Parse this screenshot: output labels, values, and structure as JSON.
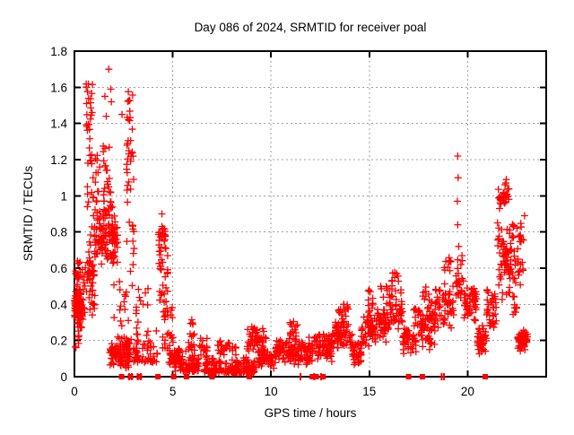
{
  "window": {
    "title": "Day 086 of 2024, SRMTID for receiver poal"
  },
  "chart_data": {
    "type": "scatter",
    "title": "Day 086 of 2024, SRMTID for receiver poal",
    "xlabel": "GPS time / hours",
    "ylabel": "SRMTID / TECUs",
    "xlim": [
      0,
      24
    ],
    "ylim": [
      0,
      1.8
    ],
    "xticks": [
      0,
      5,
      10,
      15,
      20
    ],
    "xtick_labels": [
      "0",
      "5",
      "10",
      "15",
      "20"
    ],
    "yticks": [
      0,
      0.2,
      0.4,
      0.6,
      0.8,
      1.0,
      1.2,
      1.4,
      1.6,
      1.8
    ],
    "ytick_labels": [
      "0",
      "0.2",
      "0.4",
      "0.6",
      "0.8",
      "1",
      "1.2",
      "1.4",
      "1.6",
      "1.8"
    ],
    "grid": true,
    "legend": "none",
    "marker": "plus",
    "marker_color": "#ff0000",
    "grid_color": "#a0a0a0",
    "axis_color": "#000000",
    "background": "#ffffff",
    "seed": 20240086,
    "points_singles": [
      [
        1.75,
        1.7
      ],
      [
        1.55,
        1.55
      ],
      [
        1.62,
        1.44
      ],
      [
        1.85,
        1.59
      ],
      [
        1.88,
        1.52
      ],
      [
        2.42,
        1.45
      ],
      [
        19.5,
        1.22
      ],
      [
        19.52,
        1.1
      ],
      [
        19.48,
        0.97
      ],
      [
        19.5,
        0.84
      ],
      [
        19.55,
        0.72
      ],
      [
        0.15,
        0.64
      ],
      [
        4.45,
        0.9
      ],
      [
        13.7,
        0.4
      ],
      [
        15.05,
        0.47
      ],
      [
        16.3,
        0.575
      ],
      [
        21.97,
        1.09
      ],
      [
        5.97,
        0.315
      ],
      [
        11.15,
        0.305
      ],
      [
        22.9,
        0.89
      ]
    ],
    "points_clusters": [
      [
        0.0,
        0.35,
        0.27,
        0.52,
        80,
        "d"
      ],
      [
        0.0,
        0.35,
        0.5,
        0.65,
        14,
        "u"
      ],
      [
        0.05,
        0.4,
        0.15,
        0.28,
        12,
        "u"
      ],
      [
        0.35,
        0.62,
        0.3,
        0.62,
        16,
        "u"
      ],
      [
        0.55,
        0.92,
        1.2,
        1.62,
        26,
        "u"
      ],
      [
        0.58,
        1.0,
        0.88,
        1.2,
        13,
        "u"
      ],
      [
        0.6,
        1.05,
        0.3,
        0.88,
        48,
        "d"
      ],
      [
        1.0,
        1.45,
        0.55,
        0.95,
        42,
        "d"
      ],
      [
        1.05,
        1.35,
        0.95,
        1.25,
        11,
        "u"
      ],
      [
        1.45,
        1.95,
        0.6,
        1.05,
        58,
        "d"
      ],
      [
        1.45,
        1.82,
        1.02,
        1.28,
        16,
        "u"
      ],
      [
        1.95,
        2.2,
        0.6,
        0.92,
        30,
        "d"
      ],
      [
        1.8,
        2.9,
        0.04,
        0.24,
        95,
        "d"
      ],
      [
        2.0,
        2.75,
        0.27,
        0.58,
        14,
        "u"
      ],
      [
        2.58,
        3.05,
        1.2,
        1.58,
        22,
        "u"
      ],
      [
        2.6,
        3.05,
        0.92,
        1.2,
        10,
        "u"
      ],
      [
        2.65,
        3.15,
        0.5,
        0.92,
        12,
        "u"
      ],
      [
        3.0,
        4.25,
        0.08,
        0.33,
        55,
        "b"
      ],
      [
        3.1,
        3.85,
        0.33,
        0.52,
        10,
        "u"
      ],
      [
        4.28,
        4.65,
        0.7,
        0.87,
        26,
        "d"
      ],
      [
        4.3,
        4.75,
        0.42,
        0.7,
        24,
        "u"
      ],
      [
        4.4,
        5.05,
        0.15,
        0.42,
        30,
        "u"
      ],
      [
        4.8,
        5.35,
        0.03,
        0.17,
        48,
        "d"
      ],
      [
        5.35,
        6.35,
        0.03,
        0.15,
        75,
        "b"
      ],
      [
        5.8,
        6.15,
        0.14,
        0.3,
        18,
        "u"
      ],
      [
        6.3,
        6.8,
        0.09,
        0.27,
        16,
        "u"
      ],
      [
        6.6,
        9.2,
        0.02,
        0.13,
        160,
        "b"
      ],
      [
        7.25,
        8.25,
        0.12,
        0.2,
        26,
        "u"
      ],
      [
        8.75,
        9.75,
        0.13,
        0.28,
        45,
        "d"
      ],
      [
        9.2,
        10.15,
        0.04,
        0.17,
        55,
        "d"
      ],
      [
        10.15,
        11.0,
        0.07,
        0.22,
        55,
        "d"
      ],
      [
        10.95,
        11.35,
        0.22,
        0.3,
        12,
        "u"
      ],
      [
        11.0,
        12.15,
        0.06,
        0.22,
        80,
        "d"
      ],
      [
        12.15,
        13.2,
        0.08,
        0.26,
        72,
        "d"
      ],
      [
        13.2,
        14.15,
        0.14,
        0.33,
        62,
        "d"
      ],
      [
        13.4,
        13.95,
        0.33,
        0.4,
        13,
        "u"
      ],
      [
        14.15,
        14.6,
        0.05,
        0.2,
        35,
        "d"
      ],
      [
        14.6,
        15.35,
        0.14,
        0.35,
        52,
        "d"
      ],
      [
        14.95,
        15.2,
        0.35,
        0.48,
        10,
        "u"
      ],
      [
        15.35,
        16.0,
        0.18,
        0.4,
        46,
        "d"
      ],
      [
        15.5,
        15.95,
        0.4,
        0.5,
        7,
        "u"
      ],
      [
        16.0,
        16.7,
        0.24,
        0.5,
        46,
        "d"
      ],
      [
        16.1,
        16.55,
        0.5,
        0.58,
        8,
        "u"
      ],
      [
        16.7,
        17.45,
        0.1,
        0.32,
        46,
        "d"
      ],
      [
        17.25,
        17.45,
        0.32,
        0.38,
        5,
        "u"
      ],
      [
        17.45,
        18.35,
        0.14,
        0.42,
        68,
        "d"
      ],
      [
        17.5,
        18.1,
        0.42,
        0.5,
        8,
        "u"
      ],
      [
        18.35,
        19.3,
        0.25,
        0.55,
        56,
        "d"
      ],
      [
        18.75,
        19.15,
        0.55,
        0.66,
        10,
        "u"
      ],
      [
        19.4,
        19.8,
        0.4,
        0.68,
        26,
        "d"
      ],
      [
        19.8,
        20.45,
        0.3,
        0.52,
        48,
        "d"
      ],
      [
        20.45,
        20.95,
        0.1,
        0.3,
        42,
        "d"
      ],
      [
        20.95,
        21.5,
        0.24,
        0.5,
        36,
        "d"
      ],
      [
        21.5,
        22.15,
        0.4,
        0.9,
        56,
        "d"
      ],
      [
        21.55,
        22.1,
        0.9,
        1.08,
        30,
        "d"
      ],
      [
        22.15,
        22.85,
        0.45,
        0.92,
        46,
        "d"
      ],
      [
        22.3,
        22.65,
        0.34,
        0.45,
        10,
        "u"
      ],
      [
        22.55,
        23.05,
        0.14,
        0.26,
        62,
        "d"
      ]
    ],
    "zero_squares": [
      2.4,
      2.85,
      3.3,
      4.25,
      5.05,
      5.7,
      7.0,
      8.9,
      12.1,
      12.3,
      12.65,
      17.0,
      17.7,
      20.9
    ],
    "zero_ticks": [
      2.78,
      2.92,
      3.22,
      3.38,
      11.5,
      12.2,
      12.55,
      18.68,
      18.8
    ]
  }
}
